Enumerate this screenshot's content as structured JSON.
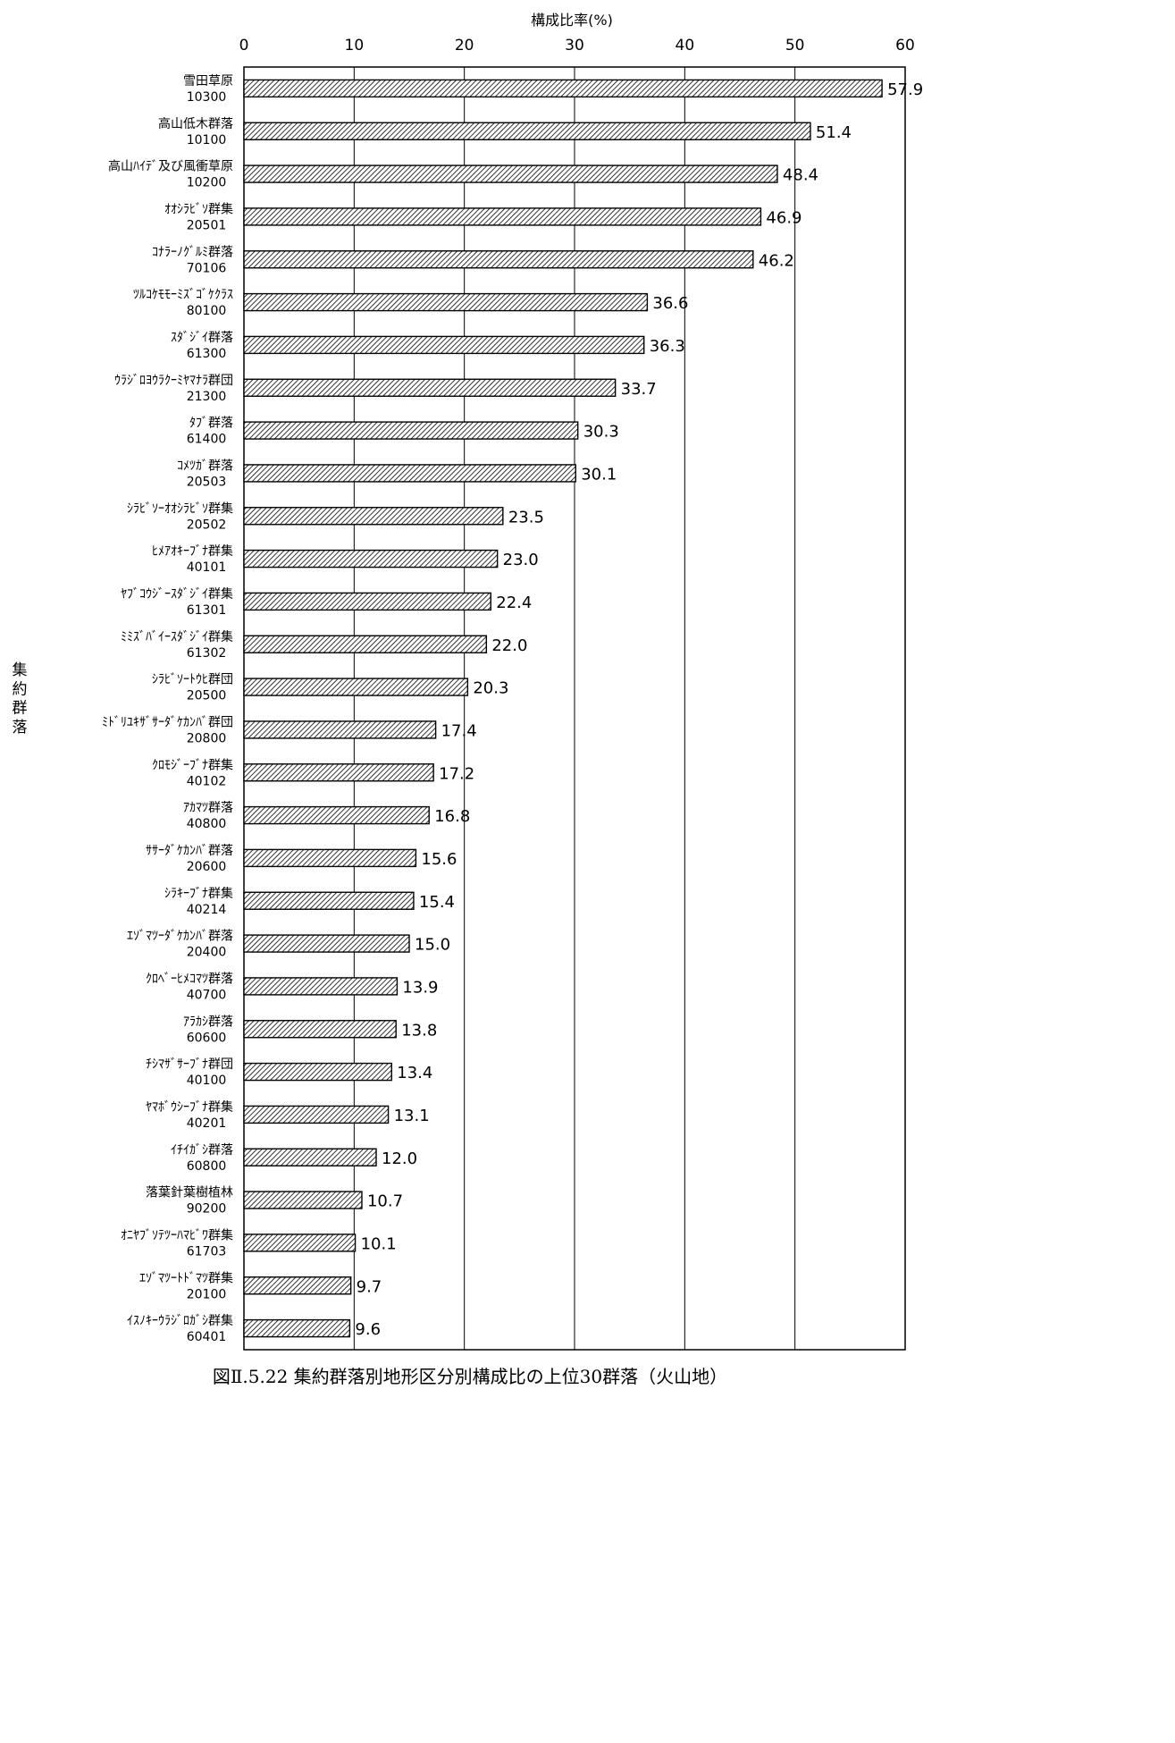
{
  "chart_data": {
    "type": "bar",
    "orientation": "horizontal",
    "title": "",
    "xlabel": "構成比率(%)",
    "ylabel": "集約群落",
    "xlim": [
      0,
      60
    ],
    "x_ticks": [
      0,
      10,
      20,
      30,
      40,
      50,
      60
    ],
    "grid": "vertical",
    "legend": "none",
    "categories": [
      {
        "name": "雪田草原",
        "code": "10300",
        "value": 57.9,
        "label": "57.9"
      },
      {
        "name": "高山低木群落",
        "code": "10100",
        "value": 51.4,
        "label": "51.4"
      },
      {
        "name": "高山ﾊｲﾃﾞ及び風衝草原",
        "code": "10200",
        "value": 48.4,
        "label": "48.4"
      },
      {
        "name": "ｵｵｼﾗﾋﾞｿ群集",
        "code": "20501",
        "value": 46.9,
        "label": "46.9"
      },
      {
        "name": "ｺﾅﾗｰﾉｸﾞﾙﾐ群落",
        "code": "70106",
        "value": 46.2,
        "label": "46.2"
      },
      {
        "name": "ﾂﾙｺｹﾓﾓｰﾐｽﾞｺﾞｹｸﾗｽ",
        "code": "80100",
        "value": 36.6,
        "label": "36.6"
      },
      {
        "name": "ｽﾀﾞｼﾞｲ群落",
        "code": "61300",
        "value": 36.3,
        "label": "36.3"
      },
      {
        "name": "ｳﾗｼﾞﾛﾖｳﾗｸｰﾐﾔﾏﾅﾗ群団",
        "code": "21300",
        "value": 33.7,
        "label": "33.7"
      },
      {
        "name": "ﾀﾌﾞ群落",
        "code": "61400",
        "value": 30.3,
        "label": "30.3"
      },
      {
        "name": "ｺﾒﾂｶﾞ群落",
        "code": "20503",
        "value": 30.1,
        "label": "30.1"
      },
      {
        "name": "ｼﾗﾋﾞｿｰｵｵｼﾗﾋﾞｿ群集",
        "code": "20502",
        "value": 23.5,
        "label": "23.5"
      },
      {
        "name": "ﾋﾒｱｵｷｰﾌﾞﾅ群集",
        "code": "40101",
        "value": 23.0,
        "label": "23.0"
      },
      {
        "name": "ﾔﾌﾞｺｳｼﾞｰｽﾀﾞｼﾞｲ群集",
        "code": "61301",
        "value": 22.4,
        "label": "22.4"
      },
      {
        "name": "ﾐﾐｽﾞﾊﾞｲｰｽﾀﾞｼﾞｲ群集",
        "code": "61302",
        "value": 22.0,
        "label": "22.0"
      },
      {
        "name": "ｼﾗﾋﾞｿｰﾄｳﾋ群団",
        "code": "20500",
        "value": 20.3,
        "label": "20.3"
      },
      {
        "name": "ﾐﾄﾞﾘﾕｷｻﾞｻｰﾀﾞｹｶﾝﾊﾞ群団",
        "code": "20800",
        "value": 17.4,
        "label": "17.4"
      },
      {
        "name": "ｸﾛﾓｼﾞｰﾌﾞﾅ群集",
        "code": "40102",
        "value": 17.2,
        "label": "17.2"
      },
      {
        "name": "ｱｶﾏﾂ群落",
        "code": "40800",
        "value": 16.8,
        "label": "16.8"
      },
      {
        "name": "ｻｻｰﾀﾞｹｶﾝﾊﾞ群落",
        "code": "20600",
        "value": 15.6,
        "label": "15.6"
      },
      {
        "name": "ｼﾗｷｰﾌﾞﾅ群集",
        "code": "40214",
        "value": 15.4,
        "label": "15.4"
      },
      {
        "name": "ｴｿﾞﾏﾂｰﾀﾞｹｶﾝﾊﾞ群落",
        "code": "20400",
        "value": 15.0,
        "label": "15.0"
      },
      {
        "name": "ｸﾛﾍﾞｰﾋﾒｺﾏﾂ群落",
        "code": "40700",
        "value": 13.9,
        "label": "13.9"
      },
      {
        "name": "ｱﾗｶｼ群落",
        "code": "60600",
        "value": 13.8,
        "label": "13.8"
      },
      {
        "name": "ﾁｼﾏｻﾞｻｰﾌﾞﾅ群団",
        "code": "40100",
        "value": 13.4,
        "label": "13.4"
      },
      {
        "name": "ﾔﾏﾎﾞｳｼｰﾌﾞﾅ群集",
        "code": "40201",
        "value": 13.1,
        "label": "13.1"
      },
      {
        "name": "ｲﾁｲｶﾞｼ群落",
        "code": "60800",
        "value": 12.0,
        "label": "12.0"
      },
      {
        "name": "落葉針葉樹植林",
        "code": "90200",
        "value": 10.7,
        "label": "10.7"
      },
      {
        "name": "ｵﾆﾔﾌﾞｿﾃﾂｰﾊﾏﾋﾞﾜ群集",
        "code": "61703",
        "value": 10.1,
        "label": "10.1"
      },
      {
        "name": "ｴｿﾞﾏﾂｰﾄﾄﾞﾏﾂ群集",
        "code": "20100",
        "value": 9.7,
        "label": "9.7"
      },
      {
        "name": "ｲｽﾉｷｰｳﾗｼﾞﾛｶﾞｼ群集",
        "code": "60401",
        "value": 9.6,
        "label": "9.6"
      }
    ],
    "bar_fill": "diagonal-hatch",
    "bar_color": "#000000"
  },
  "caption": "図Ⅱ.5.22 集約群落別地形区分別構成比の上位30群落（火山地）"
}
